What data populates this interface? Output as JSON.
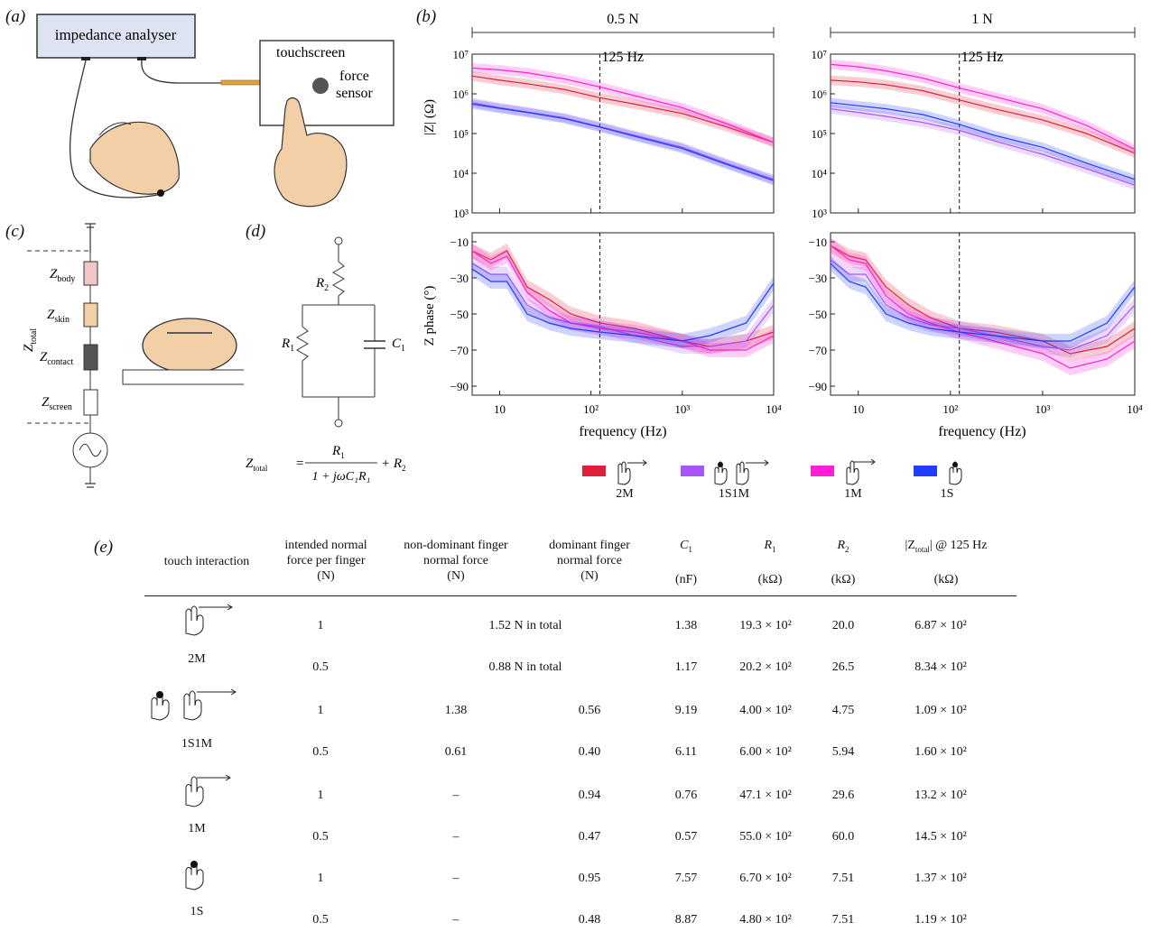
{
  "panel_labels": {
    "a": "(a)",
    "b": "(b)",
    "c": "(c)",
    "d": "(d)",
    "e": "(e)"
  },
  "panel_a": {
    "analyser_label": "impedance analyser",
    "touchscreen_label": "touchscreen",
    "force_label_1": "force",
    "force_label_2": "sensor",
    "colors": {
      "analyser_fill": "#dde3f3",
      "cable": "#e0a43a",
      "finger": "#f2cfa7"
    }
  },
  "panel_b": {
    "force_headers": [
      "0.5 N",
      "1 N"
    ],
    "marker_label": "125 Hz",
    "xlabel": "frequency (Hz)",
    "ylabel_mag": "|Z| (Ω)",
    "ylabel_phase": "Z phase (°)",
    "xticks": [
      "10",
      "10²",
      "10³",
      "10⁴"
    ],
    "yticks_mag": [
      "10⁷",
      "10⁶",
      "10⁵",
      "10⁴",
      "10³"
    ],
    "yticks_phase": [
      "−10",
      "−30",
      "−50",
      "−70",
      "−90"
    ]
  },
  "chart_data": [
    {
      "type": "line",
      "title": "0.5 N",
      "xlabel": "frequency (Hz)",
      "ylabel": "|Z| (Ω)",
      "x_scale": "log",
      "y_scale": "log",
      "xlim": [
        5,
        10000
      ],
      "ylim": [
        1000,
        10000000
      ],
      "x": [
        5,
        10,
        20,
        50,
        125,
        300,
        1000,
        3000,
        10000
      ],
      "series": [
        {
          "name": "2M",
          "color": "#e0203a",
          "values": [
            2800000,
            2200000,
            1800000,
            1300000,
            800000,
            550000,
            320000,
            150000,
            60000
          ]
        },
        {
          "name": "1S1M",
          "color": "#a855f7",
          "values": [
            600000,
            450000,
            350000,
            250000,
            150000,
            90000,
            45000,
            18000,
            7000
          ]
        },
        {
          "name": "1M",
          "color": "#ff1fd6",
          "values": [
            4500000,
            4000000,
            3400000,
            2400000,
            1500000,
            900000,
            450000,
            180000,
            60000
          ]
        },
        {
          "name": "1S",
          "color": "#1f3cff",
          "values": [
            550000,
            430000,
            340000,
            240000,
            145000,
            85000,
            42000,
            17000,
            6500
          ]
        }
      ]
    },
    {
      "type": "line",
      "title": "1 N",
      "xlabel": "frequency (Hz)",
      "ylabel": "|Z| (Ω)",
      "x_scale": "log",
      "y_scale": "log",
      "xlim": [
        5,
        10000
      ],
      "ylim": [
        1000,
        10000000
      ],
      "x": [
        5,
        10,
        20,
        50,
        125,
        300,
        1000,
        3000,
        10000
      ],
      "series": [
        {
          "name": "2M",
          "color": "#e0203a",
          "values": [
            2200000,
            2000000,
            1700000,
            1200000,
            700000,
            420000,
            220000,
            100000,
            32000
          ]
        },
        {
          "name": "1S1M",
          "color": "#a855f7",
          "values": [
            420000,
            340000,
            270000,
            190000,
            120000,
            65000,
            30000,
            13000,
            5000
          ]
        },
        {
          "name": "1M",
          "color": "#ff1fd6",
          "values": [
            5500000,
            4800000,
            3800000,
            2500000,
            1400000,
            850000,
            420000,
            160000,
            40000
          ]
        },
        {
          "name": "1S",
          "color": "#1f3cff",
          "values": [
            600000,
            500000,
            420000,
            300000,
            170000,
            90000,
            45000,
            18000,
            7000
          ]
        }
      ]
    },
    {
      "type": "line",
      "xlabel": "frequency (Hz)",
      "ylabel": "Z phase (°)",
      "x_scale": "log",
      "xlim": [
        5,
        10000
      ],
      "ylim": [
        -95,
        -5
      ],
      "x": [
        5,
        8,
        12,
        20,
        35,
        60,
        125,
        300,
        1000,
        2000,
        5000,
        10000
      ],
      "series": [
        {
          "name": "2M",
          "color": "#e0203a",
          "values": [
            -15,
            -20,
            -15,
            -35,
            -42,
            -50,
            -55,
            -58,
            -65,
            -68,
            -65,
            -60
          ]
        },
        {
          "name": "1S1M",
          "color": "#a855f7",
          "values": [
            -22,
            -28,
            -28,
            -45,
            -52,
            -55,
            -57,
            -62,
            -68,
            -68,
            -65,
            -45
          ]
        },
        {
          "name": "1M",
          "color": "#ff1fd6",
          "values": [
            -15,
            -22,
            -18,
            -38,
            -48,
            -55,
            -58,
            -60,
            -65,
            -70,
            -70,
            -62
          ]
        },
        {
          "name": "1S",
          "color": "#1f3cff",
          "values": [
            -25,
            -32,
            -32,
            -50,
            -55,
            -58,
            -60,
            -62,
            -65,
            -62,
            -55,
            -33
          ]
        }
      ]
    },
    {
      "type": "line",
      "xlabel": "frequency (Hz)",
      "ylabel": "Z phase (°)",
      "x_scale": "log",
      "xlim": [
        5,
        10000
      ],
      "ylim": [
        -95,
        -5
      ],
      "x": [
        5,
        8,
        12,
        20,
        35,
        60,
        125,
        300,
        1000,
        2000,
        5000,
        10000
      ],
      "series": [
        {
          "name": "2M",
          "color": "#e0203a",
          "values": [
            -12,
            -18,
            -20,
            -35,
            -45,
            -52,
            -58,
            -60,
            -65,
            -72,
            -68,
            -58
          ]
        },
        {
          "name": "1S1M",
          "color": "#a855f7",
          "values": [
            -20,
            -28,
            -28,
            -45,
            -52,
            -56,
            -58,
            -62,
            -68,
            -70,
            -62,
            -45
          ]
        },
        {
          "name": "1M",
          "color": "#ff1fd6",
          "values": [
            -12,
            -20,
            -22,
            -40,
            -50,
            -55,
            -60,
            -65,
            -72,
            -80,
            -75,
            -65
          ]
        },
        {
          "name": "1S",
          "color": "#1f3cff",
          "values": [
            -22,
            -32,
            -35,
            -50,
            -55,
            -58,
            -60,
            -62,
            -65,
            -65,
            -55,
            -35
          ]
        }
      ]
    }
  ],
  "legend": [
    {
      "label": "2M",
      "color": "#e0203a"
    },
    {
      "label": "1S1M",
      "color": "#a855f7"
    },
    {
      "label": "1M",
      "color": "#ff1fd6"
    },
    {
      "label": "1S",
      "color": "#1f3cff"
    }
  ],
  "panel_c": {
    "z_body": "body",
    "z_skin": "skin",
    "z_contact": "contact",
    "z_screen": "screen",
    "z_total": "total",
    "colors": {
      "body": "#f2c6c6",
      "skin": "#f2cfa7",
      "contact": "#555555",
      "screen": "#ffffff"
    }
  },
  "panel_d": {
    "r2": "R",
    "r2_sub": "2",
    "r1": "R",
    "r1_sub": "1",
    "c1": "C",
    "c1_sub": "1",
    "eq_lhs": "Z",
    "eq_lhs_sub": "total",
    "eq_equals": "=",
    "eq_num": "R",
    "eq_num_sub": "1",
    "eq_den": "1 + jωC₁R₁",
    "eq_tail": "+ R",
    "eq_tail_sub": "2"
  },
  "table": {
    "headers": {
      "touch": "touch interaction",
      "intended_1": "intended normal",
      "intended_2": "force per finger",
      "intended_3": "(N)",
      "nondom_1": "non-dominant finger",
      "nondom_2": "normal force",
      "nondom_3": "(N)",
      "dom_1": "dominant finger",
      "dom_2": "normal force",
      "dom_3": "(N)",
      "c1": "C",
      "c1_sub": "1",
      "c1_unit": "(nF)",
      "r1": "R",
      "r1_sub": "1",
      "r1_unit": "(kΩ)",
      "r2": "R",
      "r2_sub": "2",
      "r2_unit": "(kΩ)",
      "zt_pre": "|Z",
      "zt_sub": "total",
      "zt_post": "| @ 125 Hz",
      "zt_unit": "(kΩ)"
    },
    "groups": [
      {
        "label": "2M",
        "rows": [
          {
            "force": "1",
            "merged": "1.52 N in total",
            "c1": "1.38",
            "r1": "19.3 × 10²",
            "r2": "20.0",
            "zt": "6.87 × 10²"
          },
          {
            "force": "0.5",
            "merged": "0.88 N in total",
            "c1": "1.17",
            "r1": "20.2 × 10²",
            "r2": "26.5",
            "zt": "8.34 × 10²"
          }
        ]
      },
      {
        "label": "1S1M",
        "rows": [
          {
            "force": "1",
            "nondom": "1.38",
            "dom": "0.56",
            "c1": "9.19",
            "r1": "4.00 × 10²",
            "r2": "4.75",
            "zt": "1.09 × 10²"
          },
          {
            "force": "0.5",
            "nondom": "0.61",
            "dom": "0.40",
            "c1": "6.11",
            "r1": "6.00 × 10²",
            "r2": "5.94",
            "zt": "1.60 × 10²"
          }
        ]
      },
      {
        "label": "1M",
        "rows": [
          {
            "force": "1",
            "nondom": "–",
            "dom": "0.94",
            "c1": "0.76",
            "r1": "47.1 × 10²",
            "r2": "29.6",
            "zt": "13.2 × 10²"
          },
          {
            "force": "0.5",
            "nondom": "–",
            "dom": "0.47",
            "c1": "0.57",
            "r1": "55.0 × 10²",
            "r2": "60.0",
            "zt": "14.5 × 10²"
          }
        ]
      },
      {
        "label": "1S",
        "rows": [
          {
            "force": "1",
            "nondom": "–",
            "dom": "0.95",
            "c1": "7.57",
            "r1": "6.70 × 10²",
            "r2": "7.51",
            "zt": "1.37 × 10²"
          },
          {
            "force": "0.5",
            "nondom": "–",
            "dom": "0.48",
            "c1": "8.87",
            "r1": "4.80 × 10²",
            "r2": "7.51",
            "zt": "1.19 × 10²"
          }
        ]
      }
    ]
  }
}
